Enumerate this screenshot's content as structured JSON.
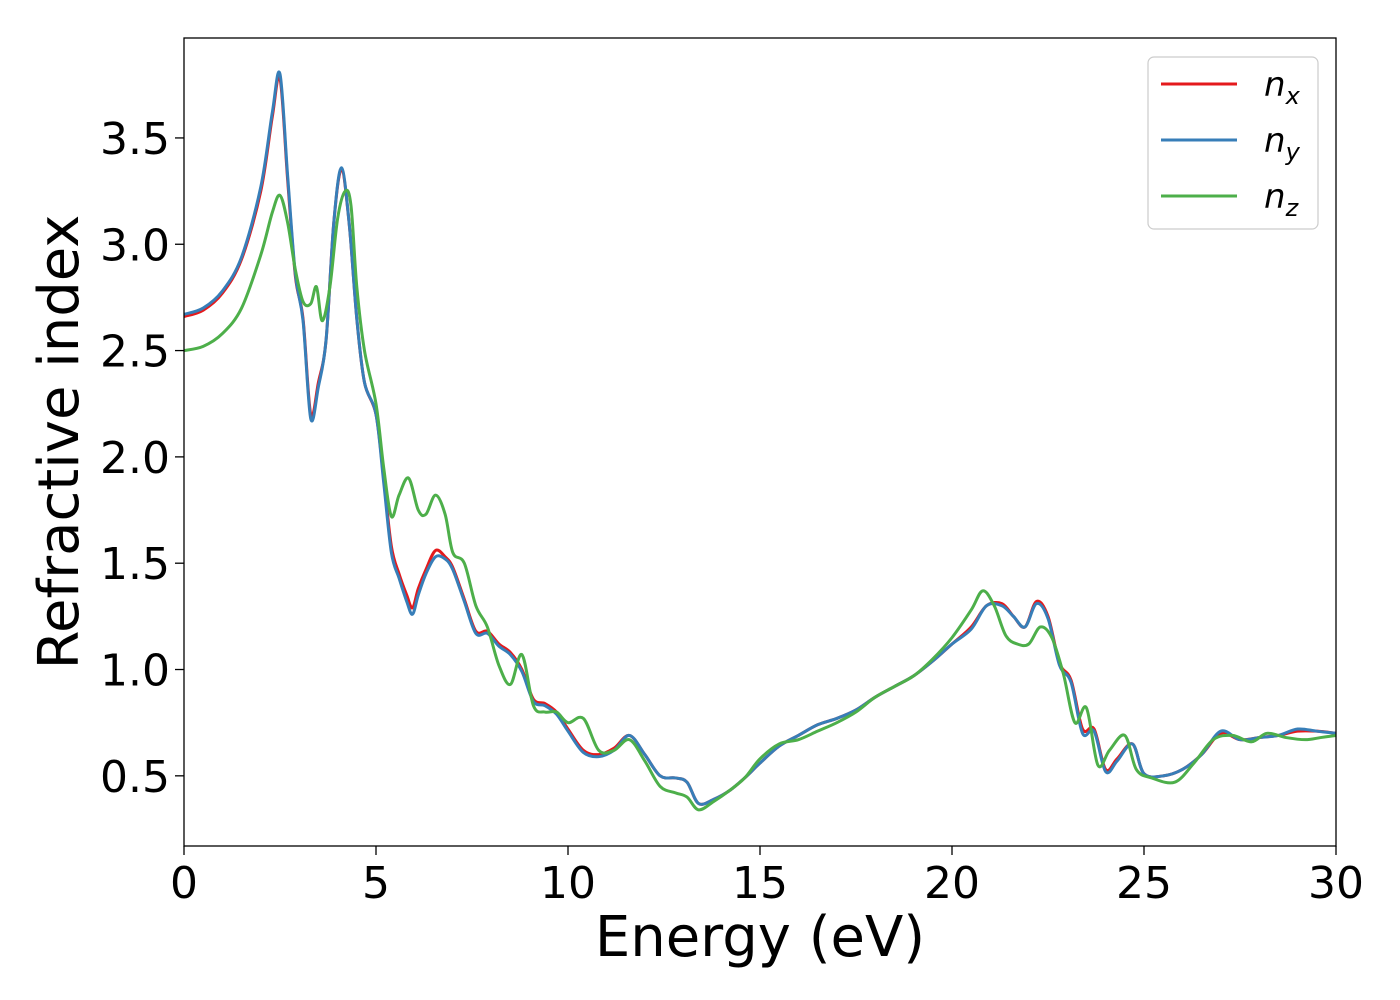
{
  "chart_data": {
    "type": "line",
    "xlabel": "Energy (eV)",
    "ylabel": "Refractive index",
    "xlim": [
      0,
      30
    ],
    "ylim": [
      0.17,
      3.97
    ],
    "xticks": [
      "0",
      "5",
      "10",
      "15",
      "20",
      "25",
      "30"
    ],
    "yticks": [
      "0.5",
      "1.0",
      "1.5",
      "2.0",
      "2.5",
      "3.0",
      "3.5"
    ],
    "grid": false,
    "legend_position": "top-right",
    "series": [
      {
        "name": "n_x",
        "legend_base": "n",
        "legend_sub": "x",
        "color": "#e41a1c",
        "x": [
          0,
          0.5,
          1.0,
          1.5,
          2.0,
          2.3,
          2.5,
          2.7,
          2.9,
          3.1,
          3.3,
          3.5,
          3.7,
          3.9,
          4.1,
          4.3,
          4.5,
          4.7,
          5.0,
          5.2,
          5.4,
          5.6,
          5.8,
          5.95,
          6.1,
          6.3,
          6.55,
          6.8,
          7.0,
          7.3,
          7.6,
          7.9,
          8.2,
          8.5,
          8.8,
          9.1,
          9.4,
          9.7,
          10.0,
          10.4,
          10.8,
          11.2,
          11.6,
          12.0,
          12.4,
          12.8,
          13.1,
          13.4,
          13.8,
          14.2,
          14.6,
          15.0,
          15.5,
          16.0,
          16.5,
          17.0,
          17.5,
          18.0,
          18.5,
          19.0,
          19.5,
          20.0,
          20.5,
          20.9,
          21.3,
          21.6,
          21.9,
          22.2,
          22.5,
          22.8,
          23.1,
          23.4,
          23.7,
          24.0,
          24.3,
          24.7,
          25.0,
          25.5,
          26.0,
          26.5,
          27.0,
          27.5,
          28.0,
          28.5,
          29.0,
          29.5,
          30.0
        ],
        "y": [
          2.66,
          2.69,
          2.77,
          2.93,
          3.25,
          3.6,
          3.78,
          3.3,
          2.85,
          2.65,
          2.2,
          2.35,
          2.55,
          3.1,
          3.35,
          3.1,
          2.65,
          2.35,
          2.2,
          1.9,
          1.58,
          1.45,
          1.35,
          1.29,
          1.38,
          1.47,
          1.56,
          1.53,
          1.48,
          1.33,
          1.18,
          1.18,
          1.12,
          1.08,
          1.0,
          0.86,
          0.84,
          0.8,
          0.72,
          0.62,
          0.6,
          0.63,
          0.69,
          0.6,
          0.5,
          0.49,
          0.47,
          0.37,
          0.39,
          0.43,
          0.49,
          0.56,
          0.64,
          0.69,
          0.74,
          0.77,
          0.81,
          0.87,
          0.92,
          0.97,
          1.04,
          1.12,
          1.2,
          1.3,
          1.31,
          1.25,
          1.2,
          1.32,
          1.25,
          1.03,
          0.95,
          0.72,
          0.72,
          0.53,
          0.58,
          0.65,
          0.51,
          0.5,
          0.53,
          0.6,
          0.7,
          0.67,
          0.68,
          0.69,
          0.71,
          0.71,
          0.7
        ]
      },
      {
        "name": "n_y",
        "legend_base": "n",
        "legend_sub": "y",
        "color": "#377eb8",
        "x": [
          0,
          0.5,
          1.0,
          1.5,
          2.0,
          2.3,
          2.5,
          2.7,
          2.9,
          3.1,
          3.3,
          3.5,
          3.7,
          3.9,
          4.1,
          4.3,
          4.5,
          4.7,
          5.0,
          5.2,
          5.4,
          5.6,
          5.8,
          5.95,
          6.1,
          6.3,
          6.55,
          6.8,
          7.0,
          7.3,
          7.6,
          7.9,
          8.2,
          8.5,
          8.8,
          9.1,
          9.4,
          9.7,
          10.0,
          10.4,
          10.8,
          11.2,
          11.6,
          12.0,
          12.4,
          12.8,
          13.1,
          13.4,
          13.8,
          14.2,
          14.6,
          15.0,
          15.5,
          16.0,
          16.5,
          17.0,
          17.5,
          18.0,
          18.5,
          19.0,
          19.5,
          20.0,
          20.5,
          20.9,
          21.3,
          21.6,
          21.9,
          22.2,
          22.5,
          22.8,
          23.1,
          23.4,
          23.7,
          24.0,
          24.3,
          24.7,
          25.0,
          25.5,
          26.0,
          26.5,
          27.0,
          27.5,
          28.0,
          28.5,
          29.0,
          29.5,
          30.0
        ],
        "y": [
          2.67,
          2.7,
          2.78,
          2.94,
          3.27,
          3.62,
          3.8,
          3.32,
          2.86,
          2.64,
          2.18,
          2.33,
          2.55,
          3.1,
          3.36,
          3.1,
          2.65,
          2.35,
          2.2,
          1.88,
          1.55,
          1.43,
          1.32,
          1.26,
          1.35,
          1.45,
          1.53,
          1.52,
          1.47,
          1.32,
          1.17,
          1.17,
          1.11,
          1.07,
          0.99,
          0.85,
          0.83,
          0.79,
          0.71,
          0.61,
          0.59,
          0.62,
          0.69,
          0.6,
          0.5,
          0.49,
          0.47,
          0.37,
          0.39,
          0.43,
          0.49,
          0.56,
          0.64,
          0.69,
          0.74,
          0.77,
          0.81,
          0.87,
          0.92,
          0.97,
          1.04,
          1.12,
          1.19,
          1.3,
          1.3,
          1.25,
          1.2,
          1.31,
          1.24,
          1.02,
          0.94,
          0.7,
          0.71,
          0.52,
          0.57,
          0.65,
          0.51,
          0.5,
          0.53,
          0.6,
          0.71,
          0.67,
          0.68,
          0.69,
          0.72,
          0.71,
          0.7
        ]
      },
      {
        "name": "n_z",
        "legend_base": "n",
        "legend_sub": "z",
        "color": "#4daf4a",
        "x": [
          0,
          0.5,
          1.0,
          1.5,
          2.0,
          2.3,
          2.5,
          2.7,
          2.9,
          3.1,
          3.3,
          3.45,
          3.6,
          3.8,
          4.0,
          4.2,
          4.35,
          4.5,
          4.7,
          5.0,
          5.2,
          5.4,
          5.6,
          5.85,
          6.1,
          6.3,
          6.55,
          6.8,
          7.0,
          7.3,
          7.6,
          7.9,
          8.2,
          8.5,
          8.8,
          9.1,
          9.4,
          9.7,
          10.0,
          10.4,
          10.8,
          11.2,
          11.6,
          12.0,
          12.4,
          12.8,
          13.1,
          13.4,
          13.8,
          14.2,
          14.6,
          15.0,
          15.5,
          16.0,
          16.5,
          17.0,
          17.5,
          18.0,
          18.5,
          19.0,
          19.5,
          20.0,
          20.5,
          20.8,
          21.1,
          21.4,
          21.7,
          22.0,
          22.3,
          22.6,
          22.9,
          23.2,
          23.5,
          23.8,
          24.1,
          24.5,
          24.8,
          25.2,
          25.8,
          26.3,
          26.8,
          27.3,
          27.8,
          28.2,
          28.7,
          29.2,
          29.6,
          30.0
        ],
        "y": [
          2.5,
          2.52,
          2.58,
          2.7,
          2.95,
          3.15,
          3.23,
          3.1,
          2.88,
          2.73,
          2.72,
          2.8,
          2.64,
          2.8,
          3.12,
          3.25,
          3.18,
          2.8,
          2.5,
          2.25,
          1.95,
          1.72,
          1.82,
          1.9,
          1.75,
          1.73,
          1.82,
          1.73,
          1.55,
          1.5,
          1.3,
          1.2,
          1.02,
          0.93,
          1.07,
          0.83,
          0.8,
          0.8,
          0.75,
          0.77,
          0.62,
          0.62,
          0.67,
          0.57,
          0.45,
          0.42,
          0.4,
          0.34,
          0.38,
          0.43,
          0.49,
          0.58,
          0.65,
          0.67,
          0.71,
          0.75,
          0.8,
          0.87,
          0.92,
          0.97,
          1.05,
          1.15,
          1.28,
          1.37,
          1.3,
          1.16,
          1.12,
          1.12,
          1.2,
          1.15,
          0.98,
          0.75,
          0.82,
          0.55,
          0.62,
          0.69,
          0.53,
          0.49,
          0.47,
          0.56,
          0.67,
          0.69,
          0.66,
          0.7,
          0.68,
          0.67,
          0.68,
          0.69
        ]
      }
    ]
  }
}
